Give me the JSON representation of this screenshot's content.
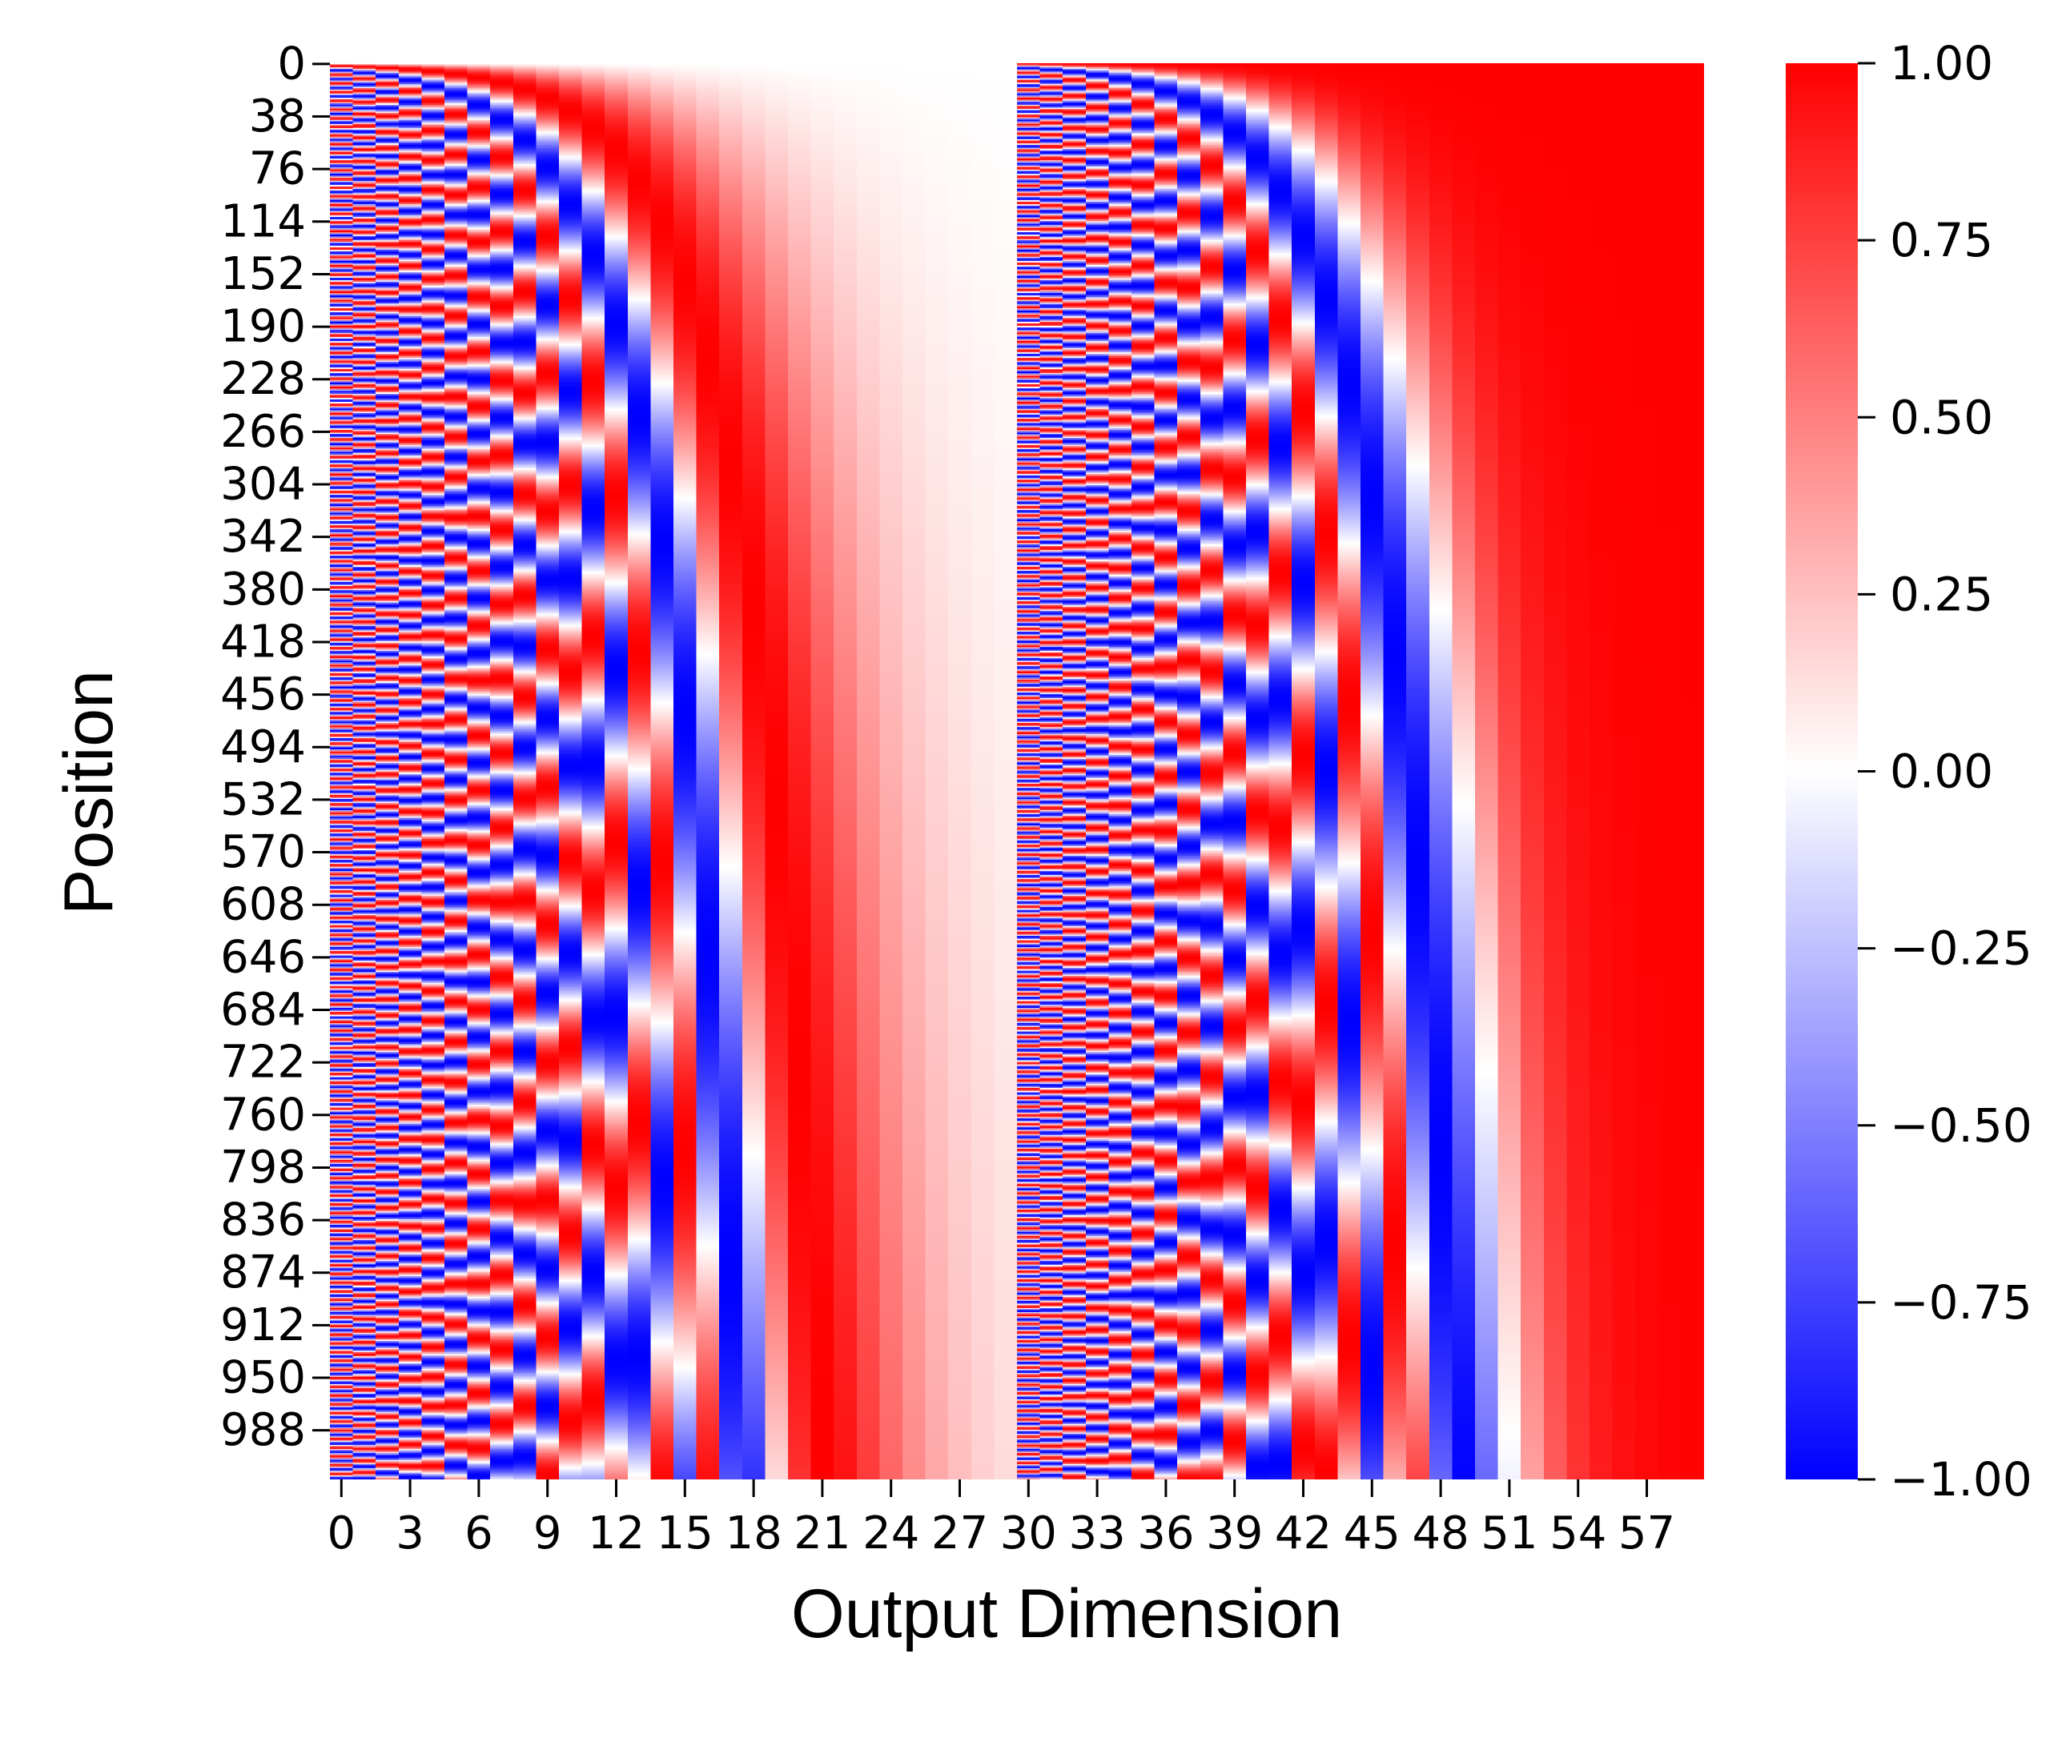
{
  "chart_data": {
    "type": "heatmap",
    "title": "",
    "xlabel": "Output Dimension",
    "ylabel": "Position",
    "n_positions": 1024,
    "n_dimensions": 60,
    "x_tick_labels": [
      "0",
      "3",
      "6",
      "9",
      "12",
      "15",
      "18",
      "21",
      "24",
      "27",
      "30",
      "33",
      "36",
      "39",
      "42",
      "45",
      "48",
      "51",
      "54",
      "57"
    ],
    "y_tick_labels": [
      "0",
      "38",
      "76",
      "114",
      "152",
      "190",
      "228",
      "266",
      "304",
      "342",
      "380",
      "418",
      "456",
      "494",
      "532",
      "570",
      "608",
      "646",
      "684",
      "722",
      "760",
      "798",
      "836",
      "874",
      "912",
      "950",
      "988"
    ],
    "colorbar": {
      "ticks": [
        "1.00",
        "0.75",
        "0.50",
        "0.25",
        "0.00",
        "−0.25",
        "−0.50",
        "−0.75",
        "−1.00"
      ],
      "range": [
        -1,
        1
      ],
      "colormap": "bwr"
    },
    "value_function": "sinusoidal positional encoding: columns 0-29 = sin(pos / 10000^(2i/60)), columns 30-59 = cos(pos / 10000^(2i/60)), i = column index within each half",
    "sample_rows": {
      "pos_0": {
        "sin_half": [
          0,
          0,
          0,
          0,
          0,
          0,
          0,
          0,
          0,
          0,
          0,
          0,
          0,
          0,
          0,
          0,
          0,
          0,
          0,
          0,
          0,
          0,
          0,
          0,
          0,
          0,
          0,
          0,
          0,
          0
        ],
        "cos_half": [
          1,
          1,
          1,
          1,
          1,
          1,
          1,
          1,
          1,
          1,
          1,
          1,
          1,
          1,
          1,
          1,
          1,
          1,
          1,
          1,
          1,
          1,
          1,
          1,
          1,
          1,
          1,
          1,
          1,
          1
        ]
      }
    },
    "colors": {
      "min": "#0000ff",
      "mid": "#ffffff",
      "max": "#ff0000"
    }
  }
}
